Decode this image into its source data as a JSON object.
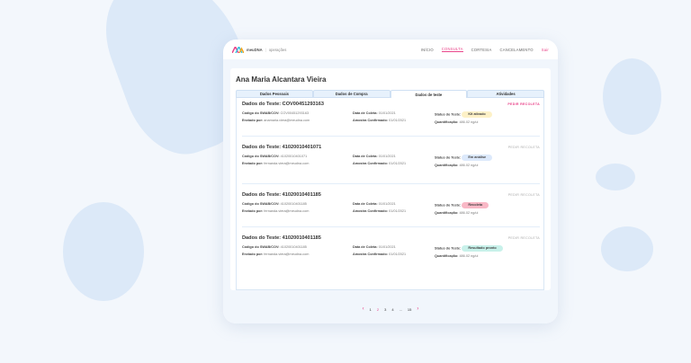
{
  "header": {
    "brand": "meuDNA",
    "section": "operações",
    "nav": [
      {
        "label": "INÍCIO"
      },
      {
        "label": "CONSULTA",
        "active": true
      },
      {
        "label": "CORTESIA"
      },
      {
        "label": "CANCELAMENTO"
      },
      {
        "label": "Sair"
      }
    ]
  },
  "patient": {
    "name": "Ana Maria Alcantara Vieira"
  },
  "tabs": [
    {
      "label": "Dados Pessoais"
    },
    {
      "label": "Dados de Compra"
    },
    {
      "label": "Dados de teste",
      "active": true
    },
    {
      "label": "Atividades"
    }
  ],
  "labels": {
    "swab": "Código do SWAB/COV:",
    "sent": "Enviado por:",
    "collect": "Data de Coleta:",
    "confirmed": "Amostra Confirmado:",
    "status": "Status do Teste:",
    "quant": "Quantificação:"
  },
  "tests": [
    {
      "title": "Dados do Teste: COV00451293163",
      "redo": "PEDIR RECOLETA",
      "swab": "COV00451293163",
      "sent": "anamaria.viera@meudna.com",
      "collect": "01/01/2021",
      "confirmed": "01/01/2021",
      "status": "Kit ativado",
      "status_color": "#fdf1c7",
      "quant": "486.02 ng/ul"
    },
    {
      "title": "Dados do Teste: 41020010401071",
      "redo": "PEDIR RECOLETA",
      "swab": "41020010401071",
      "sent": "fernanda.viera@meudna.com",
      "collect": "01/01/2021",
      "confirmed": "01/01/2021",
      "status": "Em análise",
      "status_color": "#dce9fb",
      "quant": "486.02 ng/ul"
    },
    {
      "title": "Dados do Teste: 41020010401185",
      "redo": "PEDIR RECOLETA",
      "swab": "41020010401185",
      "sent": "fernanda.viera@meudna.com",
      "collect": "01/01/2021",
      "confirmed": "01/01/2021",
      "status": "Recoleta",
      "status_color": "#f9b8c6",
      "quant": "486.02 ng/ul"
    },
    {
      "title": "Dados do Teste: 41020010401185",
      "redo": "PEDIR RECOLETA",
      "swab": "41020010401185",
      "sent": "fernanda.viera@meudna.com",
      "collect": "01/01/2021",
      "confirmed": "01/01/2021",
      "status": "Resultado pronto",
      "status_color": "#c8f1ea",
      "quant": "486.02 ng/ul"
    }
  ],
  "pagination": {
    "pages": [
      "1",
      "2",
      "3",
      "4",
      "...",
      "15"
    ],
    "current": "2"
  }
}
